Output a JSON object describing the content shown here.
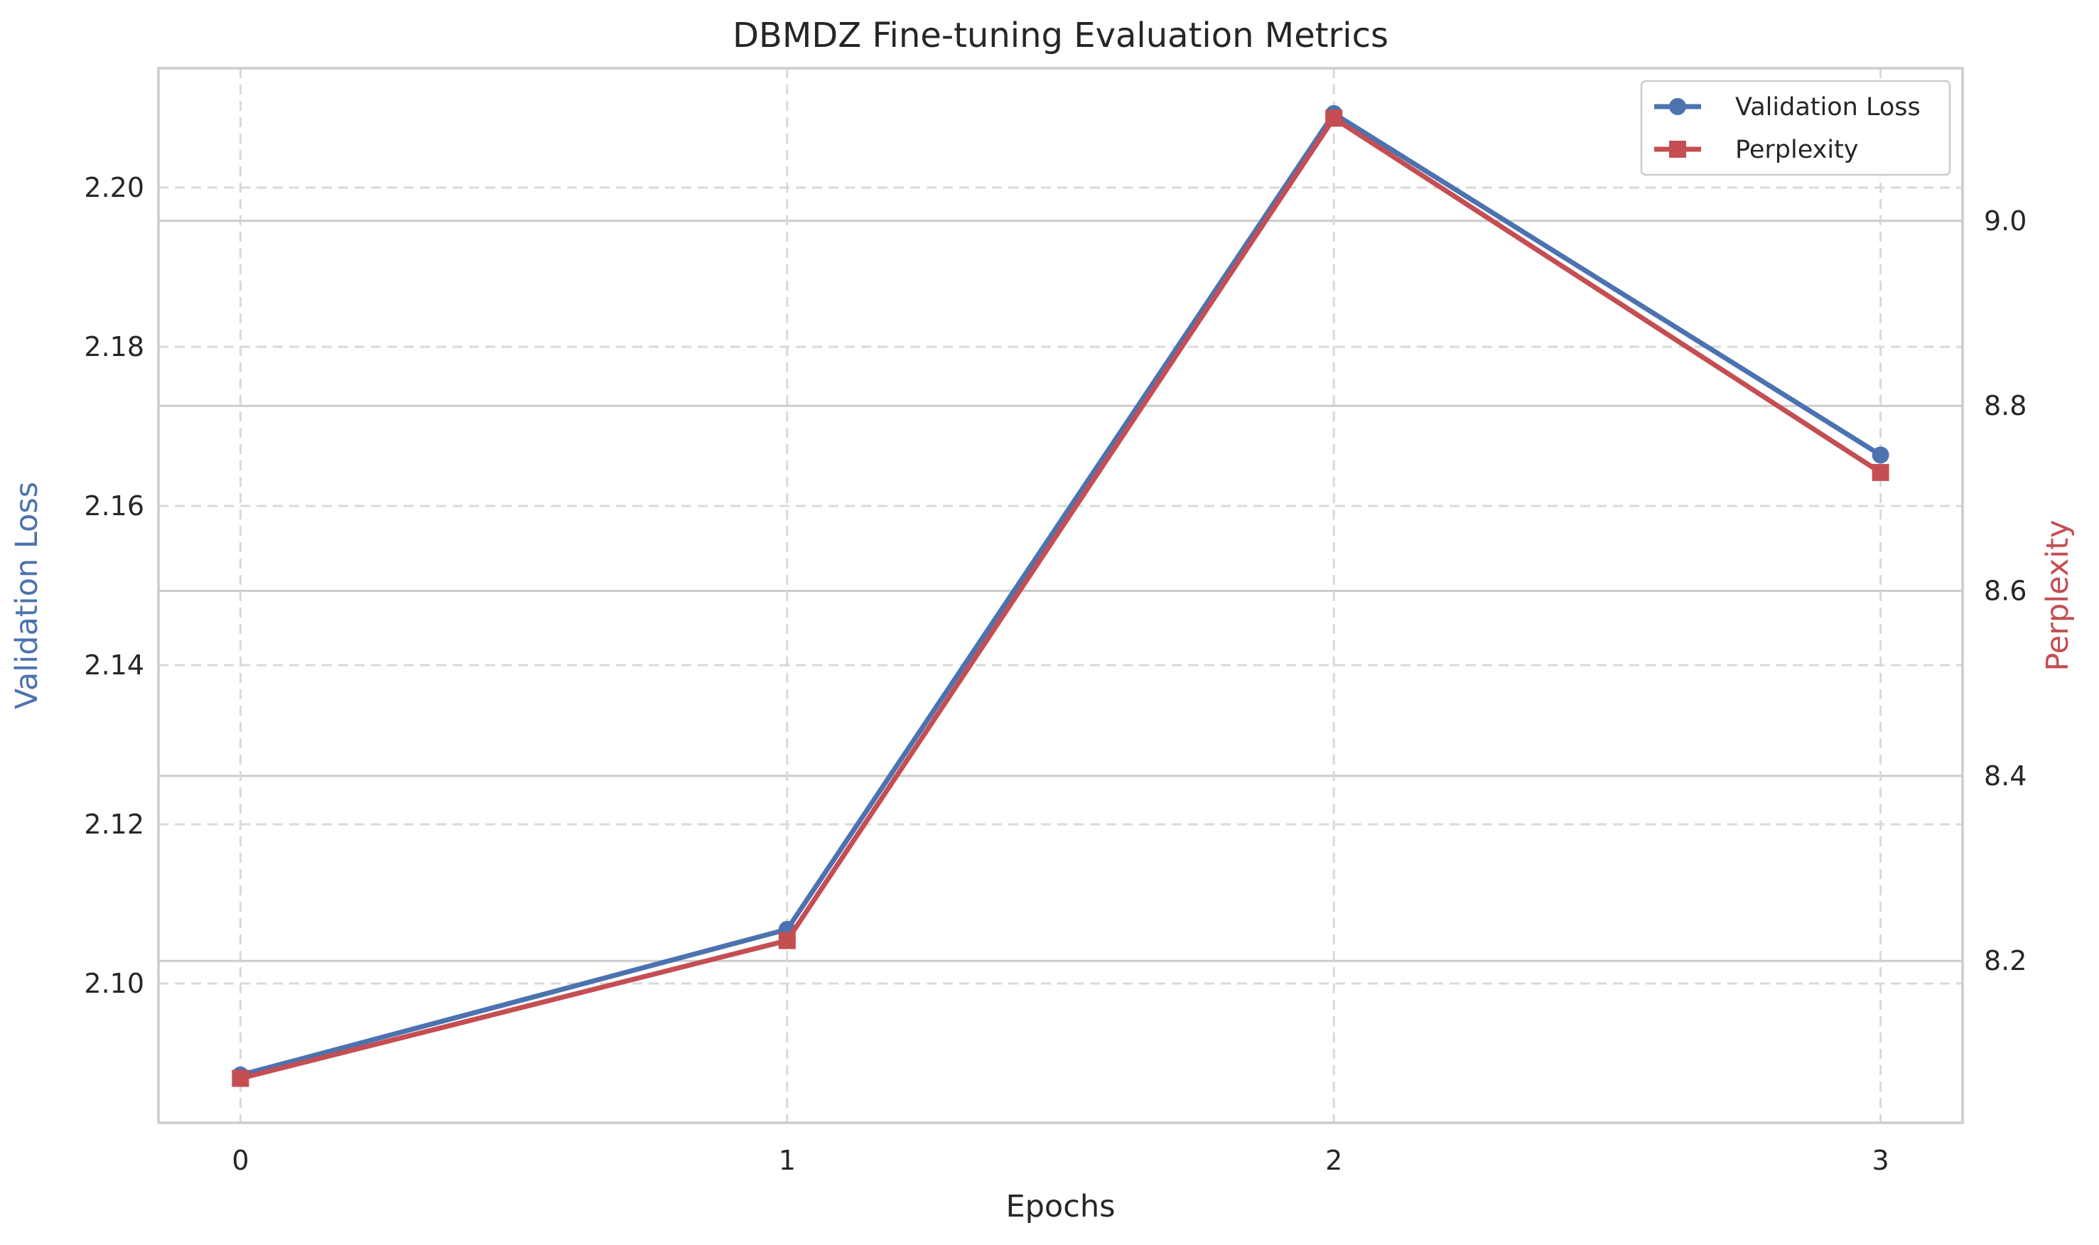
{
  "chart_data": {
    "type": "line",
    "title": "DBMDZ Fine-tuning Evaluation Metrics",
    "xlabel": "Epochs",
    "x": [
      0,
      1,
      2,
      3
    ],
    "x_ticks": [
      "0",
      "1",
      "2",
      "3"
    ],
    "xlim": [
      -0.15,
      3.15
    ],
    "grid": true,
    "legend_position": "top-right",
    "y_left": {
      "label": "Validation Loss",
      "color": "#4c72b0",
      "ylim": [
        2.0825,
        2.215
      ],
      "ticks": [
        2.1,
        2.12,
        2.14,
        2.16,
        2.18,
        2.2
      ],
      "tick_labels": [
        "2.10",
        "2.12",
        "2.14",
        "2.16",
        "2.18",
        "2.20"
      ]
    },
    "y_right": {
      "label": "Perplexity",
      "color": "#c44e52",
      "ylim": [
        8.025,
        9.165
      ],
      "ticks": [
        8.2,
        8.4,
        8.6,
        8.8,
        9.0
      ],
      "tick_labels": [
        "8.2",
        "8.4",
        "8.6",
        "8.8",
        "9.0"
      ]
    },
    "series": [
      {
        "name": "Validation Loss",
        "axis": "left",
        "marker": "circle",
        "color": "#4c72b0",
        "values": [
          2.0885,
          2.1068,
          2.2093,
          2.1664
        ]
      },
      {
        "name": "Perplexity",
        "axis": "right",
        "marker": "square",
        "color": "#c44e52",
        "values": [
          8.073,
          8.222,
          9.111,
          8.728
        ]
      }
    ]
  }
}
